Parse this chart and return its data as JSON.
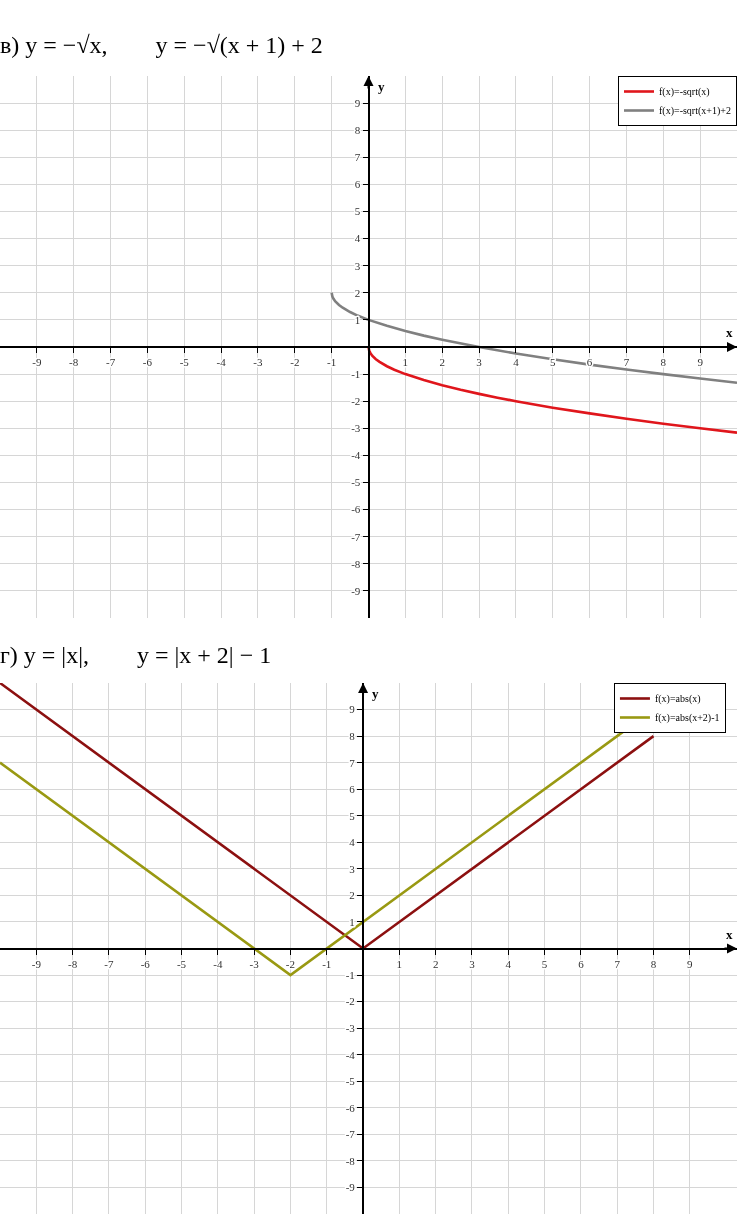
{
  "chart_data": [
    {
      "type": "line",
      "title": "в) y = −√x,  y = −√(x + 1) + 2",
      "xlabel": "x",
      "ylabel": "y",
      "xlim": [
        -10,
        10
      ],
      "ylim": [
        -10,
        10
      ],
      "xticks": [
        -9,
        -8,
        -7,
        -6,
        -5,
        -4,
        -3,
        -2,
        -1,
        1,
        2,
        3,
        4,
        5,
        6,
        7,
        8,
        9
      ],
      "yticks": [
        -9,
        -8,
        -7,
        -6,
        -5,
        -4,
        -3,
        -2,
        -1,
        1,
        2,
        3,
        4,
        5,
        6,
        7,
        8,
        9
      ],
      "grid": true,
      "legend": "top right",
      "series": [
        {
          "name": "f(x)=-sqrt(x)",
          "color": "#e0161c",
          "x": [
            0,
            0.02,
            0.05,
            0.1,
            0.2,
            0.3,
            0.5,
            0.7,
            1,
            1.5,
            2,
            2.5,
            3,
            3.5,
            4,
            5,
            6,
            7,
            8,
            9,
            10
          ],
          "values": [
            0,
            -0.14,
            -0.22,
            -0.32,
            -0.45,
            -0.55,
            -0.71,
            -0.84,
            -1,
            -1.22,
            -1.41,
            -1.58,
            -1.73,
            -1.87,
            -2,
            -2.24,
            -2.45,
            -2.65,
            -2.83,
            -3,
            -3.16
          ]
        },
        {
          "name": "f(x)=-sqrt(x+1)+2",
          "color": "#808080",
          "x": [
            -1,
            -0.98,
            -0.95,
            -0.9,
            -0.8,
            -0.7,
            -0.5,
            -0.3,
            0,
            0.5,
            1,
            1.5,
            2,
            3,
            4,
            5,
            6,
            7,
            8,
            9,
            10
          ],
          "values": [
            2,
            1.86,
            1.78,
            1.68,
            1.55,
            1.45,
            1.29,
            1.16,
            1,
            0.78,
            0.59,
            0.42,
            0.27,
            0,
            -0.24,
            -0.45,
            -0.65,
            -0.83,
            -1,
            -1.16,
            -1.32
          ]
        }
      ]
    },
    {
      "type": "line",
      "title": "г) y = |x|,  y = |x + 2| − 1",
      "xlabel": "x",
      "ylabel": "y",
      "xlim": [
        -10,
        10.3
      ],
      "ylim": [
        -10,
        10
      ],
      "xticks": [
        -9,
        -8,
        -7,
        -6,
        -5,
        -4,
        -3,
        -2,
        -1,
        1,
        2,
        3,
        4,
        5,
        6,
        7,
        8,
        9
      ],
      "yticks": [
        -9,
        -8,
        -7,
        -6,
        -5,
        -4,
        -3,
        -2,
        -1,
        1,
        2,
        3,
        4,
        5,
        6,
        7,
        8,
        9
      ],
      "grid": true,
      "legend": "top right",
      "series": [
        {
          "name": "f(x)=abs(x)",
          "color": "#8c1010",
          "x": [
            -10,
            0,
            8
          ],
          "values": [
            10,
            0,
            8
          ]
        },
        {
          "name": "f(x)=abs(x+2)-1",
          "color": "#999912",
          "x": [
            -10,
            -2,
            7.6
          ],
          "values": [
            7,
            -1,
            8.6
          ]
        }
      ]
    }
  ]
}
